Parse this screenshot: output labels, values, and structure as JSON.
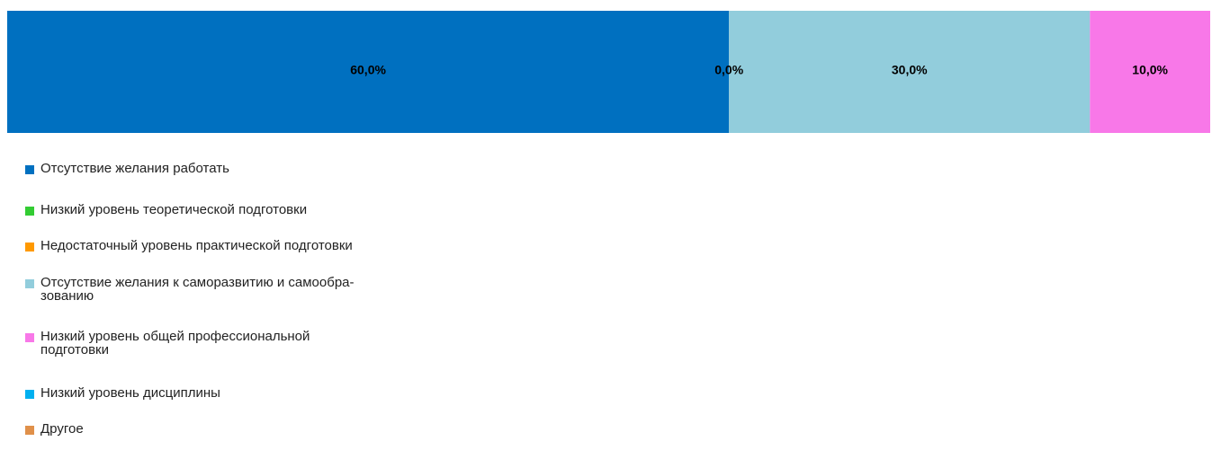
{
  "chart_data": {
    "type": "bar",
    "orientation": "horizontal-stacked-100",
    "categories": [
      ""
    ],
    "series": [
      {
        "name": "Отсутствие желания работать",
        "values": [
          60.0
        ],
        "label": "60,0%",
        "color": "#0070C0"
      },
      {
        "name": "Низкий уровень теоретической подготовки",
        "values": [
          0.0
        ],
        "label": "0,0%",
        "color": "#33CC33"
      },
      {
        "name": "Недостаточный уровень практической подготовки",
        "values": [
          0.0
        ],
        "label": "",
        "color": "#FF9900"
      },
      {
        "name": "Отсутствие желания к саморазвитию и самообра-\nзованию",
        "values": [
          30.0
        ],
        "label": "30,0%",
        "color": "#92CDDC"
      },
      {
        "name": "Низкий уровень общей профессиональной\nподготовки",
        "values": [
          10.0
        ],
        "label": "10,0%",
        "color": "#F878E8"
      },
      {
        "name": "Низкий уровень дисциплины",
        "values": [
          0.0
        ],
        "label": "",
        "color": "#00B0F0"
      },
      {
        "name": "Другое",
        "values": [
          0.0
        ],
        "label": "",
        "color": "#E0904A"
      }
    ],
    "xlim": [
      0,
      100
    ],
    "grid": false,
    "legend": "bottom-left"
  }
}
